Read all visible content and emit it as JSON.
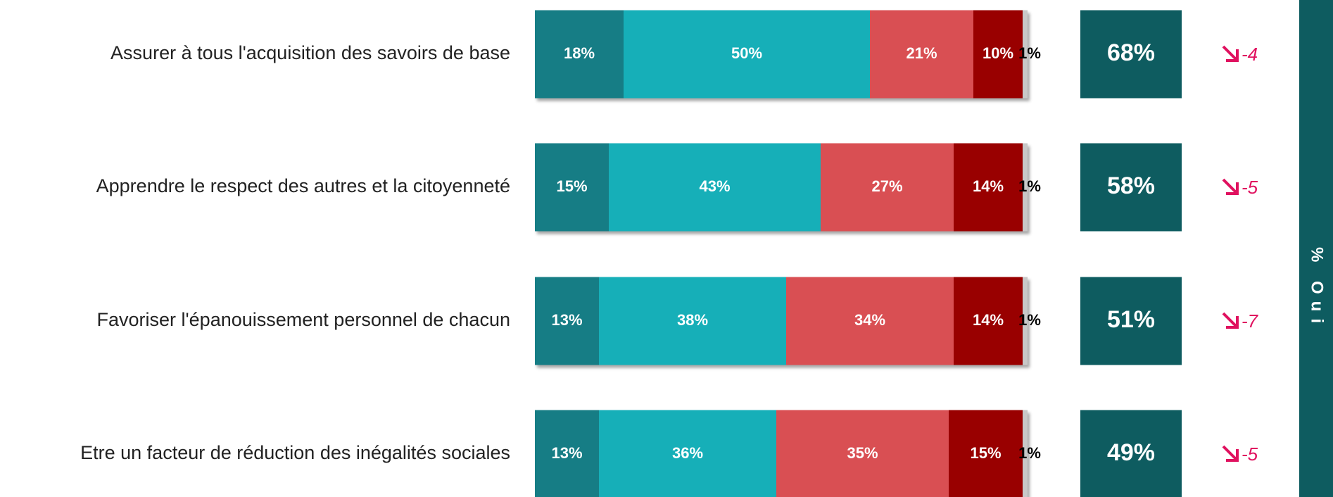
{
  "chart_data": {
    "type": "bar",
    "orientation": "horizontal",
    "stacked": true,
    "categories": [
      "Assurer à tous l'acquisition des savoirs de base",
      "Apprendre le respect des autres et la citoyenneté",
      "Favoriser l'épanouissement personnel de chacun",
      "Etre un facteur de réduction des inégalités sociales"
    ],
    "xlim": [
      0,
      100
    ],
    "series": [
      {
        "color": "#137d85",
        "label_color": "#ffffff",
        "values": [
          18,
          15,
          13,
          13
        ],
        "value_labels": [
          "18%",
          "15%",
          "13%",
          "13%"
        ]
      },
      {
        "color": "#14afb8",
        "label_color": "#ffffff",
        "values": [
          50,
          43,
          38,
          36
        ],
        "value_labels": [
          "50%",
          "43%",
          "38%",
          "36%"
        ]
      },
      {
        "color": "#d94f52",
        "label_color": "#ffffff",
        "values": [
          21,
          27,
          34,
          35
        ],
        "value_labels": [
          "21%",
          "27%",
          "34%",
          "35%"
        ]
      },
      {
        "color": "#990000",
        "label_color": "#ffffff",
        "values": [
          10,
          14,
          14,
          15
        ],
        "value_labels": [
          "10%",
          "14%",
          "14%",
          "15%"
        ]
      },
      {
        "color": "#c8c8c8",
        "label_color": "#000000",
        "values": [
          1,
          1,
          1,
          1
        ],
        "value_labels": [
          "1%",
          "1%",
          "1%",
          "1%"
        ]
      }
    ],
    "total": {
      "title": "% Oui",
      "color": "#0e5c60",
      "values": [
        68,
        58,
        51,
        49
      ],
      "value_labels": [
        "68%",
        "58%",
        "51%",
        "49%"
      ]
    },
    "trend": {
      "color": "#e0115f",
      "values": [
        -4,
        -5,
        -7,
        -5
      ]
    }
  }
}
